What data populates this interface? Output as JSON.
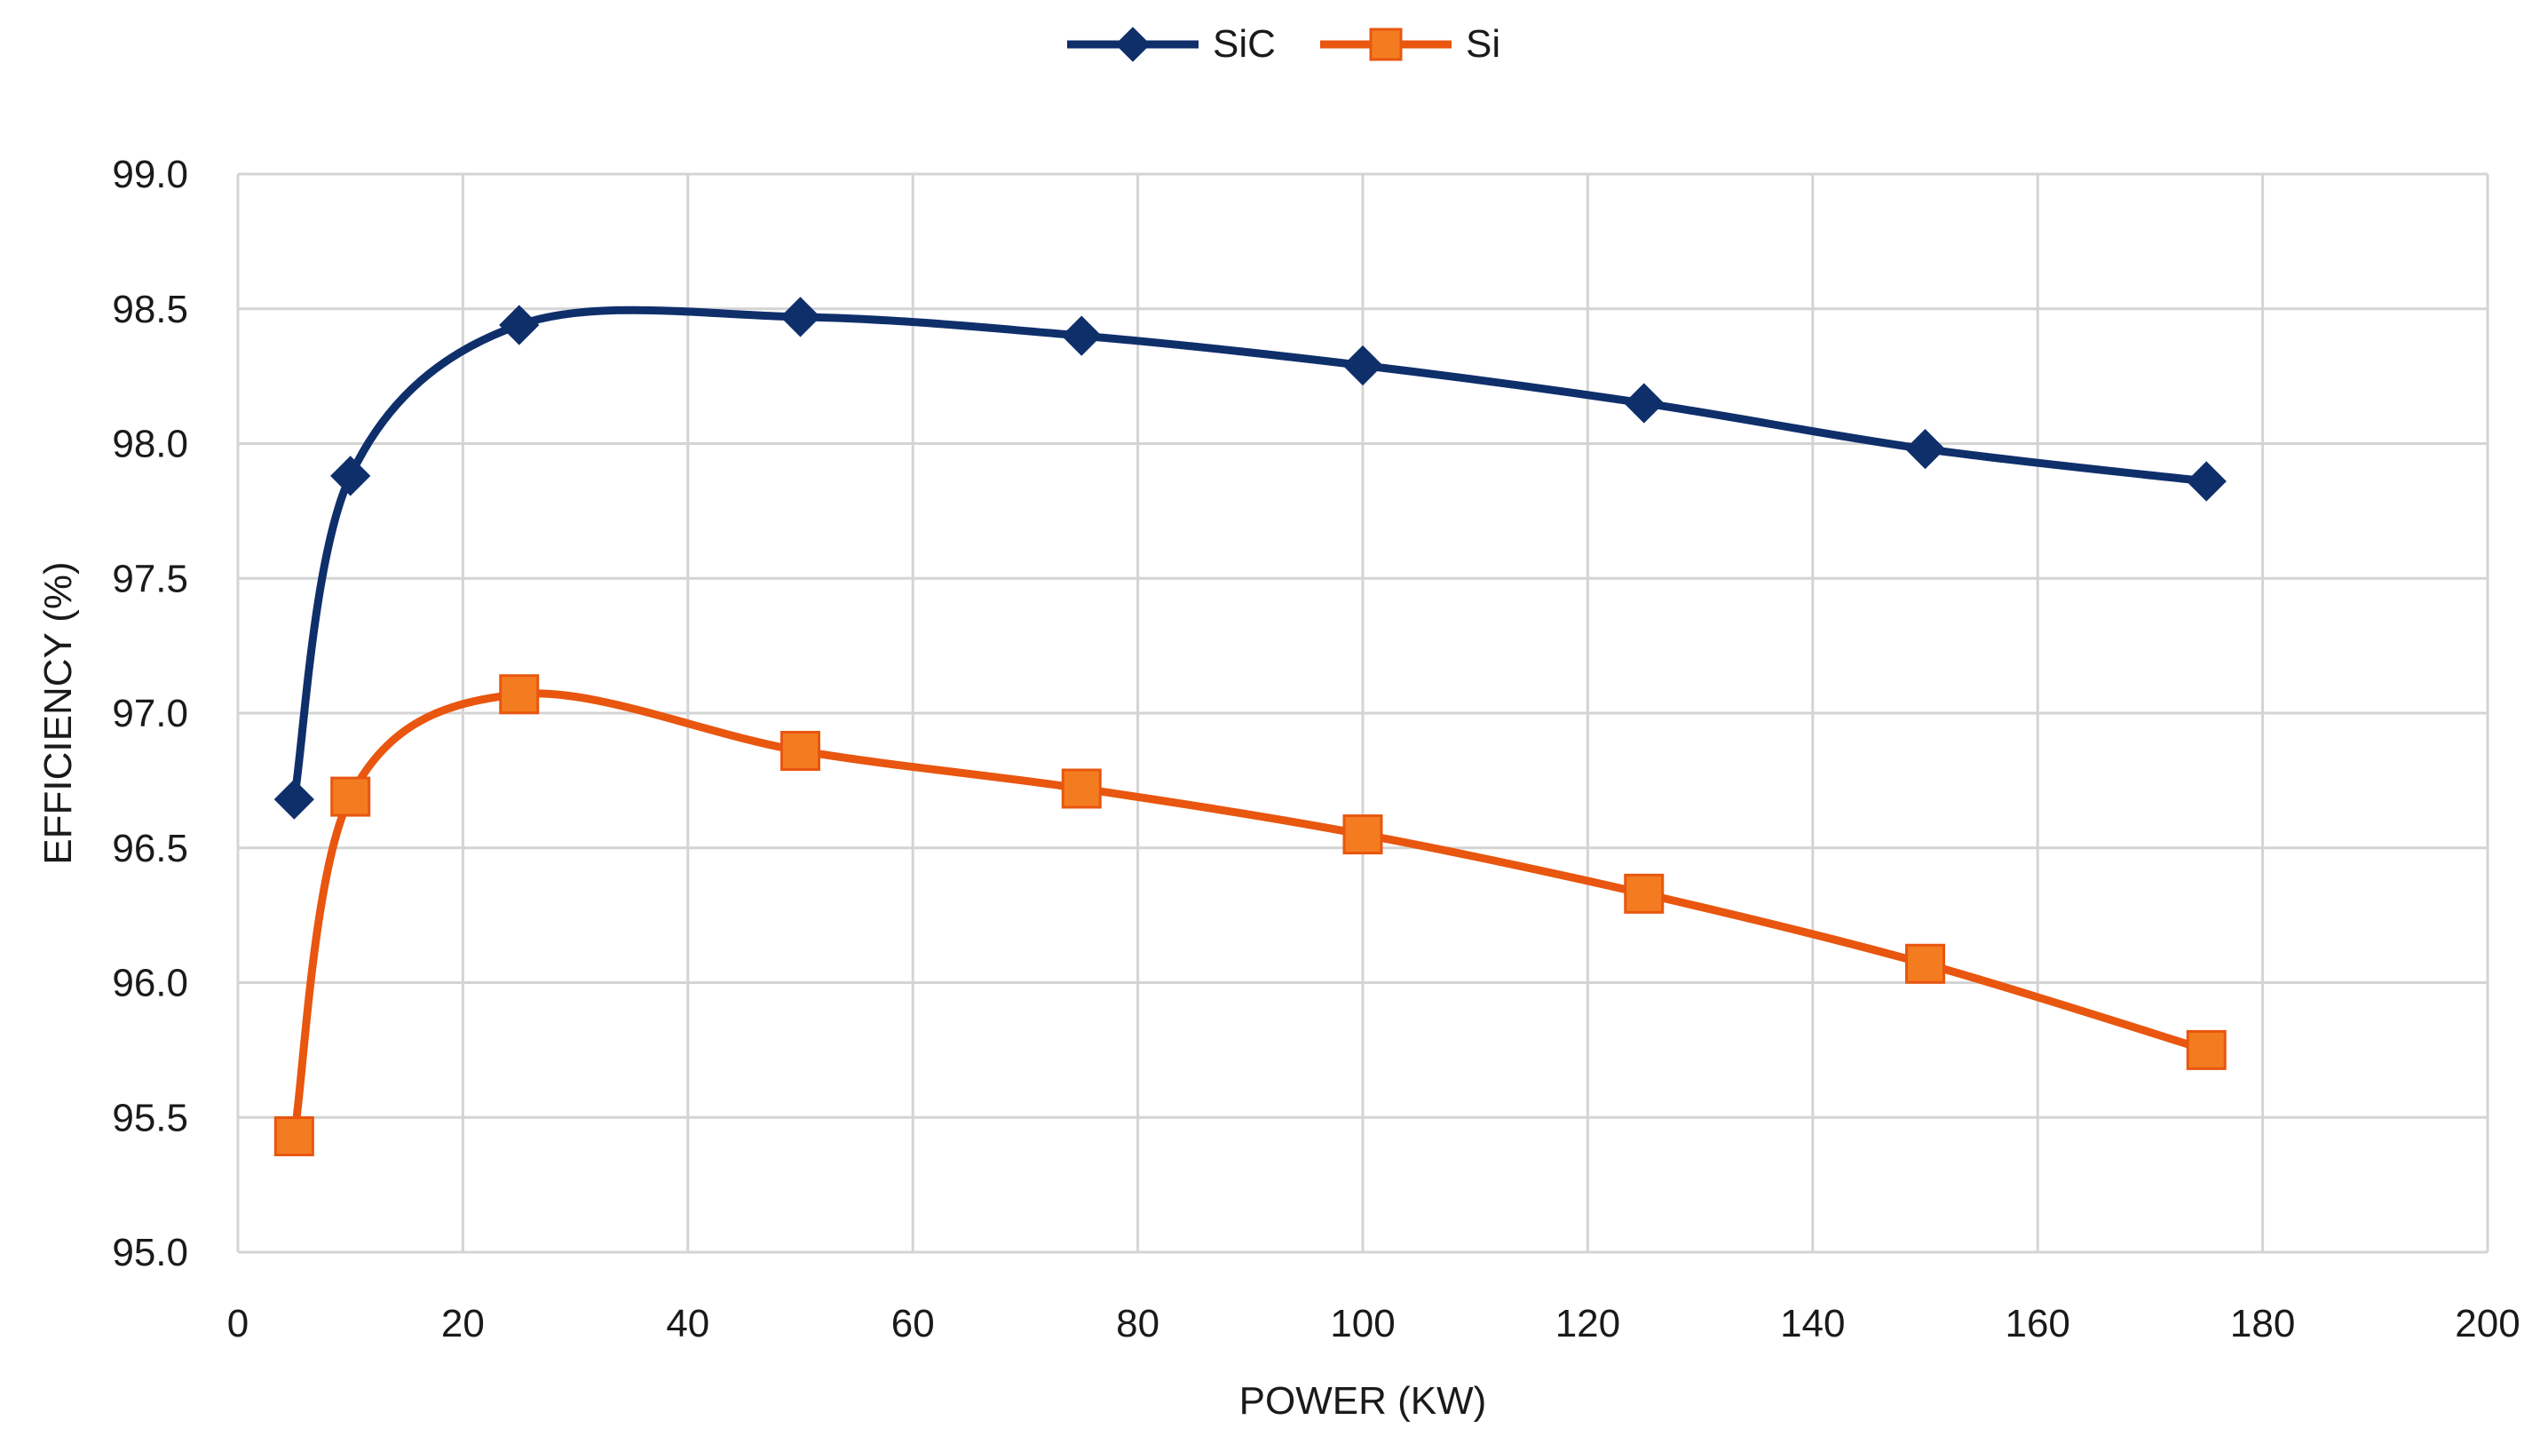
{
  "chart_data": {
    "type": "line",
    "title": "",
    "xlabel": "POWER (KW)",
    "ylabel": "EFFICIENCY (%)",
    "xlim": [
      0,
      200
    ],
    "ylim": [
      95.0,
      99.0
    ],
    "x_ticks": [
      0,
      20,
      40,
      60,
      80,
      100,
      120,
      140,
      160,
      180,
      200
    ],
    "y_ticks": [
      "95.0",
      "95.5",
      "96.0",
      "96.5",
      "97.0",
      "97.5",
      "98.0",
      "98.5",
      "99.0"
    ],
    "grid": true,
    "legend_position": "top-center",
    "x": [
      5,
      10,
      25,
      50,
      75,
      100,
      125,
      150,
      175
    ],
    "series": [
      {
        "name": "SiC",
        "color": "#0f2f6b",
        "marker": "diamond",
        "values": [
          96.68,
          97.88,
          98.44,
          98.47,
          98.4,
          98.29,
          98.15,
          97.98,
          97.86
        ]
      },
      {
        "name": "Si",
        "color": "#e8560f",
        "marker_fill": "#f47c20",
        "marker": "square",
        "values": [
          95.43,
          96.69,
          97.07,
          96.86,
          96.72,
          96.55,
          96.33,
          96.07,
          95.75
        ]
      }
    ]
  }
}
